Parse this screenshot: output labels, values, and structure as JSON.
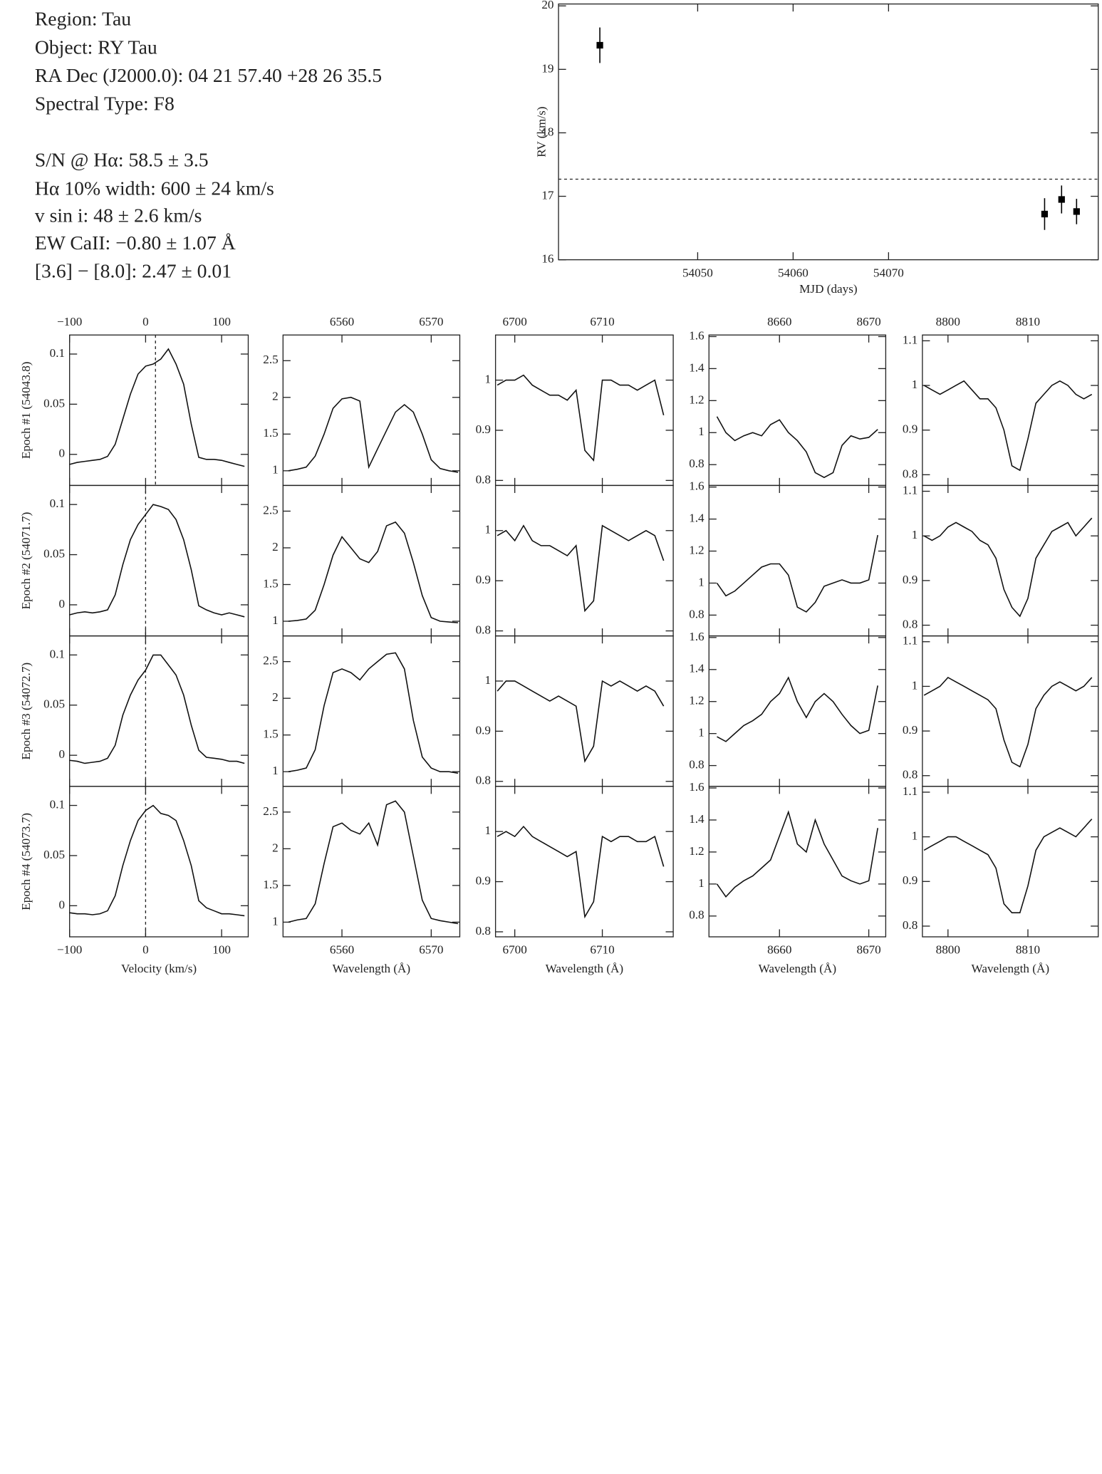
{
  "info": [
    "Region: Tau",
    "Object: RY Tau",
    "RA Dec (J2000.0): 04 21 57.40 +28 26 35.5",
    "Spectral Type: F8",
    "S/N @ Hα: 58.5 ± 3.5",
    "Hα 10% width: 600 ± 24 km/s",
    "v sin i: 48 ± 2.6 km/s",
    "EW CaII: −0.80 ± 1.07 Å",
    "[3.6] − [8.0]: 2.47 ± 0.01"
  ],
  "chart_data": [
    {
      "type": "scatter",
      "xlabel": "MJD (days)",
      "ylabel": "RV (km/s)",
      "x": [
        54039.75,
        54086.35,
        54088.13,
        54089.7
      ],
      "values": [
        19.38,
        16.72,
        16.95,
        16.76
      ],
      "errors": [
        0.28,
        0.25,
        0.22,
        0.2
      ],
      "hline": 17.27,
      "xlim": [
        54035.42,
        54091.97
      ],
      "ylim": [
        16,
        20.03
      ],
      "xticks": [
        54050,
        54060,
        54070
      ],
      "yticks": [
        16,
        17,
        18,
        19,
        20
      ],
      "color": "#000000"
    },
    {
      "type": "line",
      "ylabel": "Epoch #1 (54043.8)",
      "vline": 13,
      "xlim": [
        -100,
        135
      ],
      "ylim": [
        -0.031,
        0.119
      ],
      "xticks": [
        {
          "value": -100,
          "label": "−100"
        },
        0,
        100
      ],
      "yticks": [
        0,
        0.05,
        0.1
      ],
      "x": [
        -100,
        -90,
        -80,
        -70,
        -60,
        -50,
        -40,
        -30,
        -20,
        -10,
        0,
        10,
        20,
        30,
        40,
        50,
        60,
        70,
        80,
        90,
        100,
        110,
        120,
        130
      ],
      "values": [
        -0.01,
        -0.008,
        -0.007,
        -0.006,
        -0.005,
        -0.002,
        0.01,
        0.035,
        0.06,
        0.08,
        0.088,
        0.09,
        0.095,
        0.105,
        0.09,
        0.07,
        0.03,
        -0.003,
        -0.005,
        -0.005,
        -0.006,
        -0.008,
        -0.01,
        -0.012
      ]
    },
    {
      "type": "line",
      "xlim": [
        6553.4,
        6573.2
      ],
      "ylim": [
        0.8,
        2.85
      ],
      "xticks": [
        6560,
        6570
      ],
      "yticks": [
        1,
        1.5,
        2,
        2.5
      ],
      "x": [
        6554,
        6555,
        6556,
        6557,
        6558,
        6559,
        6560,
        6561,
        6562,
        6563,
        6564,
        6565,
        6566,
        6567,
        6568,
        6569,
        6570,
        6571,
        6572,
        6573
      ],
      "values": [
        1.0,
        1.02,
        1.05,
        1.2,
        1.5,
        1.85,
        1.98,
        2.0,
        1.95,
        1.05,
        1.3,
        1.55,
        1.8,
        1.9,
        1.8,
        1.5,
        1.15,
        1.03,
        1.0,
        0.98
      ]
    },
    {
      "type": "line",
      "xlim": [
        6697.8,
        6718.1
      ],
      "ylim": [
        0.79,
        1.09
      ],
      "xticks": [
        6700,
        6710
      ],
      "yticks": [
        0.8,
        0.9,
        1
      ],
      "x": [
        6698,
        6699,
        6700,
        6701,
        6702,
        6703,
        6704,
        6705,
        6706,
        6707,
        6708,
        6709,
        6710,
        6711,
        6712,
        6713,
        6714,
        6715,
        6716,
        6717
      ],
      "values": [
        0.99,
        1.0,
        1.0,
        1.01,
        0.99,
        0.98,
        0.97,
        0.97,
        0.96,
        0.98,
        0.86,
        0.84,
        1.0,
        1.0,
        0.99,
        0.99,
        0.98,
        0.99,
        1.0,
        0.93
      ]
    },
    {
      "type": "line",
      "xlim": [
        8652.1,
        8671.9
      ],
      "ylim": [
        0.67,
        1.61
      ],
      "xticks": [
        8660,
        8670
      ],
      "yticks": [
        0.8,
        1,
        1.2,
        1.4,
        1.6
      ],
      "x": [
        8653,
        8654,
        8655,
        8656,
        8657,
        8658,
        8659,
        8660,
        8661,
        8662,
        8663,
        8664,
        8665,
        8666,
        8667,
        8668,
        8669,
        8670,
        8671
      ],
      "values": [
        1.1,
        1.0,
        0.95,
        0.98,
        1.0,
        0.98,
        1.05,
        1.08,
        1.0,
        0.95,
        0.88,
        0.75,
        0.72,
        0.75,
        0.92,
        0.98,
        0.96,
        0.97,
        1.02
      ]
    },
    {
      "type": "line",
      "xlim": [
        8796.8,
        8818.8
      ],
      "ylim": [
        0.776,
        1.113
      ],
      "xticks": [
        8800,
        8810
      ],
      "yticks": [
        0.8,
        0.9,
        1,
        1.1
      ],
      "x": [
        8797,
        8798,
        8799,
        8800,
        8801,
        8802,
        8803,
        8804,
        8805,
        8806,
        8807,
        8808,
        8809,
        8810,
        8811,
        8812,
        8813,
        8814,
        8815,
        8816,
        8817,
        8818
      ],
      "values": [
        1.0,
        0.99,
        0.98,
        0.99,
        1.0,
        1.01,
        0.99,
        0.97,
        0.97,
        0.95,
        0.9,
        0.82,
        0.81,
        0.88,
        0.96,
        0.98,
        1.0,
        1.01,
        1.0,
        0.98,
        0.97,
        0.98
      ]
    },
    {
      "type": "line",
      "ylabel": "Epoch #2 (54071.7)",
      "vline": 0,
      "xlim": [
        -100,
        135
      ],
      "ylim": [
        -0.031,
        0.119
      ],
      "xticks": [
        -100,
        0,
        100
      ],
      "yticks": [
        0,
        0.05,
        0.1
      ],
      "x": [
        -100,
        -90,
        -80,
        -70,
        -60,
        -50,
        -40,
        -30,
        -20,
        -10,
        0,
        10,
        20,
        30,
        40,
        50,
        60,
        70,
        80,
        90,
        100,
        110,
        120,
        130
      ],
      "values": [
        -0.01,
        -0.008,
        -0.007,
        -0.008,
        -0.007,
        -0.005,
        0.01,
        0.04,
        0.065,
        0.08,
        0.09,
        0.1,
        0.098,
        0.095,
        0.085,
        0.065,
        0.035,
        -0.001,
        -0.005,
        -0.008,
        -0.01,
        -0.008,
        -0.01,
        -0.012
      ]
    },
    {
      "type": "line",
      "xlim": [
        6553.4,
        6573.2
      ],
      "ylim": [
        0.8,
        2.85
      ],
      "xticks": [
        6560,
        6570
      ],
      "yticks": [
        1,
        1.5,
        2,
        2.5
      ],
      "x": [
        6554,
        6555,
        6556,
        6557,
        6558,
        6559,
        6560,
        6561,
        6562,
        6563,
        6564,
        6565,
        6566,
        6567,
        6568,
        6569,
        6570,
        6571,
        6572,
        6573
      ],
      "values": [
        1.0,
        1.01,
        1.03,
        1.15,
        1.5,
        1.9,
        2.15,
        2.0,
        1.85,
        1.8,
        1.95,
        2.3,
        2.35,
        2.2,
        1.8,
        1.35,
        1.05,
        1.0,
        0.99,
        0.98
      ]
    },
    {
      "type": "line",
      "xlim": [
        6697.8,
        6718.1
      ],
      "ylim": [
        0.79,
        1.09
      ],
      "xticks": [
        6700,
        6710
      ],
      "yticks": [
        0.8,
        0.9,
        1
      ],
      "x": [
        6698,
        6699,
        6700,
        6701,
        6702,
        6703,
        6704,
        6705,
        6706,
        6707,
        6708,
        6709,
        6710,
        6711,
        6712,
        6713,
        6714,
        6715,
        6716,
        6717
      ],
      "values": [
        0.99,
        1.0,
        0.98,
        1.01,
        0.98,
        0.97,
        0.97,
        0.96,
        0.95,
        0.97,
        0.84,
        0.86,
        1.01,
        1.0,
        0.99,
        0.98,
        0.99,
        1.0,
        0.99,
        0.94
      ]
    },
    {
      "type": "line",
      "xlim": [
        8652.1,
        8671.9
      ],
      "ylim": [
        0.67,
        1.61
      ],
      "xticks": [
        8660,
        8670
      ],
      "yticks": [
        0.8,
        1,
        1.2,
        1.4,
        1.6
      ],
      "x": [
        8653,
        8654,
        8655,
        8656,
        8657,
        8658,
        8659,
        8660,
        8661,
        8662,
        8663,
        8664,
        8665,
        8666,
        8667,
        8668,
        8669,
        8670,
        8671
      ],
      "values": [
        1.0,
        0.92,
        0.95,
        1.0,
        1.05,
        1.1,
        1.12,
        1.12,
        1.05,
        0.85,
        0.82,
        0.88,
        0.98,
        1.0,
        1.02,
        1.0,
        1.0,
        1.02,
        1.3
      ]
    },
    {
      "type": "line",
      "xlim": [
        8796.8,
        8818.8
      ],
      "ylim": [
        0.776,
        1.113
      ],
      "xticks": [
        8800,
        8810
      ],
      "yticks": [
        0.8,
        0.9,
        1,
        1.1
      ],
      "x": [
        8797,
        8798,
        8799,
        8800,
        8801,
        8802,
        8803,
        8804,
        8805,
        8806,
        8807,
        8808,
        8809,
        8810,
        8811,
        8812,
        8813,
        8814,
        8815,
        8816,
        8817,
        8818
      ],
      "values": [
        1.0,
        0.99,
        1.0,
        1.02,
        1.03,
        1.02,
        1.01,
        0.99,
        0.98,
        0.95,
        0.88,
        0.84,
        0.82,
        0.86,
        0.95,
        0.98,
        1.01,
        1.02,
        1.03,
        1.0,
        1.02,
        1.04
      ]
    },
    {
      "type": "line",
      "ylabel": "Epoch #3 (54072.7)",
      "vline": 0,
      "xlim": [
        -100,
        135
      ],
      "ylim": [
        -0.031,
        0.119
      ],
      "xticks": [
        -100,
        0,
        100
      ],
      "yticks": [
        0,
        0.05,
        0.1
      ],
      "x": [
        -100,
        -90,
        -80,
        -70,
        -60,
        -50,
        -40,
        -30,
        -20,
        -10,
        0,
        10,
        20,
        30,
        40,
        50,
        60,
        70,
        80,
        90,
        100,
        110,
        120,
        130
      ],
      "values": [
        -0.005,
        -0.006,
        -0.008,
        -0.007,
        -0.006,
        -0.003,
        0.01,
        0.04,
        0.06,
        0.075,
        0.085,
        0.1,
        0.1,
        0.09,
        0.08,
        0.06,
        0.03,
        0.005,
        -0.002,
        -0.003,
        -0.004,
        -0.006,
        -0.006,
        -0.008
      ]
    },
    {
      "type": "line",
      "xlim": [
        6553.4,
        6573.2
      ],
      "ylim": [
        0.8,
        2.85
      ],
      "xticks": [
        6560,
        6570
      ],
      "yticks": [
        1,
        1.5,
        2,
        2.5
      ],
      "x": [
        6554,
        6555,
        6556,
        6557,
        6558,
        6559,
        6560,
        6561,
        6562,
        6563,
        6564,
        6565,
        6566,
        6567,
        6568,
        6569,
        6570,
        6571,
        6572,
        6573
      ],
      "values": [
        1.0,
        1.02,
        1.05,
        1.3,
        1.9,
        2.35,
        2.4,
        2.35,
        2.25,
        2.4,
        2.5,
        2.6,
        2.62,
        2.4,
        1.7,
        1.2,
        1.05,
        1.0,
        1.0,
        0.98
      ]
    },
    {
      "type": "line",
      "xlim": [
        6697.8,
        6718.1
      ],
      "ylim": [
        0.79,
        1.09
      ],
      "xticks": [
        6700,
        6710
      ],
      "yticks": [
        0.8,
        0.9,
        1
      ],
      "x": [
        6698,
        6699,
        6700,
        6701,
        6702,
        6703,
        6704,
        6705,
        6706,
        6707,
        6708,
        6709,
        6710,
        6711,
        6712,
        6713,
        6714,
        6715,
        6716,
        6717
      ],
      "values": [
        0.98,
        1.0,
        1.0,
        0.99,
        0.98,
        0.97,
        0.96,
        0.97,
        0.96,
        0.95,
        0.84,
        0.87,
        1.0,
        0.99,
        1.0,
        0.99,
        0.98,
        0.99,
        0.98,
        0.95
      ]
    },
    {
      "type": "line",
      "xlim": [
        8652.1,
        8671.9
      ],
      "ylim": [
        0.67,
        1.61
      ],
      "xticks": [
        8660,
        8670
      ],
      "yticks": [
        0.8,
        1,
        1.2,
        1.4,
        1.6
      ],
      "x": [
        8653,
        8654,
        8655,
        8656,
        8657,
        8658,
        8659,
        8660,
        8661,
        8662,
        8663,
        8664,
        8665,
        8666,
        8667,
        8668,
        8669,
        8670,
        8671
      ],
      "values": [
        0.98,
        0.95,
        1.0,
        1.05,
        1.08,
        1.12,
        1.2,
        1.25,
        1.35,
        1.2,
        1.1,
        1.2,
        1.25,
        1.2,
        1.12,
        1.05,
        1.0,
        1.02,
        1.3
      ]
    },
    {
      "type": "line",
      "xlim": [
        8796.8,
        8818.8
      ],
      "ylim": [
        0.776,
        1.113
      ],
      "xticks": [
        8800,
        8810
      ],
      "yticks": [
        0.8,
        0.9,
        1,
        1.1
      ],
      "x": [
        8797,
        8798,
        8799,
        8800,
        8801,
        8802,
        8803,
        8804,
        8805,
        8806,
        8807,
        8808,
        8809,
        8810,
        8811,
        8812,
        8813,
        8814,
        8815,
        8816,
        8817,
        8818
      ],
      "values": [
        0.98,
        0.99,
        1.0,
        1.02,
        1.01,
        1.0,
        0.99,
        0.98,
        0.97,
        0.95,
        0.88,
        0.83,
        0.82,
        0.87,
        0.95,
        0.98,
        1.0,
        1.01,
        1.0,
        0.99,
        1.0,
        1.02
      ]
    },
    {
      "type": "line",
      "ylabel": "Epoch #4 (54073.7)",
      "xlabel": "Velocity (km/s)",
      "vline": 0,
      "xlim": [
        -100,
        135
      ],
      "ylim": [
        -0.031,
        0.119
      ],
      "xticks": [
        {
          "value": -100,
          "label": "−100"
        },
        0,
        100
      ],
      "yticks": [
        0,
        0.05,
        0.1
      ],
      "x": [
        -100,
        -90,
        -80,
        -70,
        -60,
        -50,
        -40,
        -30,
        -20,
        -10,
        0,
        10,
        20,
        30,
        40,
        50,
        60,
        70,
        80,
        90,
        100,
        110,
        120,
        130
      ],
      "values": [
        -0.007,
        -0.008,
        -0.008,
        -0.009,
        -0.008,
        -0.005,
        0.01,
        0.04,
        0.065,
        0.085,
        0.095,
        0.1,
        0.092,
        0.09,
        0.085,
        0.065,
        0.04,
        0.005,
        -0.002,
        -0.005,
        -0.008,
        -0.008,
        -0.009,
        -0.01
      ]
    },
    {
      "type": "line",
      "xlabel": "Wavelength (Å)",
      "xlim": [
        6553.4,
        6573.2
      ],
      "ylim": [
        0.8,
        2.85
      ],
      "xticks": [
        6560,
        6570
      ],
      "yticks": [
        1,
        1.5,
        2,
        2.5
      ],
      "x": [
        6554,
        6555,
        6556,
        6557,
        6558,
        6559,
        6560,
        6561,
        6562,
        6563,
        6564,
        6565,
        6566,
        6567,
        6568,
        6569,
        6570,
        6571,
        6572,
        6573
      ],
      "values": [
        1.0,
        1.03,
        1.05,
        1.25,
        1.8,
        2.3,
        2.35,
        2.25,
        2.2,
        2.35,
        2.05,
        2.6,
        2.65,
        2.5,
        1.9,
        1.3,
        1.05,
        1.02,
        1.0,
        0.98
      ]
    },
    {
      "type": "line",
      "xlabel": "Wavelength (Å)",
      "xlim": [
        6697.8,
        6718.1
      ],
      "ylim": [
        0.79,
        1.09
      ],
      "xticks": [
        6700,
        6710
      ],
      "yticks": [
        0.8,
        0.9,
        1
      ],
      "x": [
        6698,
        6699,
        6700,
        6701,
        6702,
        6703,
        6704,
        6705,
        6706,
        6707,
        6708,
        6709,
        6710,
        6711,
        6712,
        6713,
        6714,
        6715,
        6716,
        6717
      ],
      "values": [
        0.99,
        1.0,
        0.99,
        1.01,
        0.99,
        0.98,
        0.97,
        0.96,
        0.95,
        0.96,
        0.83,
        0.86,
        0.99,
        0.98,
        0.99,
        0.99,
        0.98,
        0.98,
        0.99,
        0.93
      ]
    },
    {
      "type": "line",
      "xlabel": "Wavelength (Å)",
      "xlim": [
        8652.1,
        8671.9
      ],
      "ylim": [
        0.67,
        1.61
      ],
      "xticks": [
        8660,
        8670
      ],
      "yticks": [
        0.8,
        1,
        1.2,
        1.4,
        1.6
      ],
      "x": [
        8653,
        8654,
        8655,
        8656,
        8657,
        8658,
        8659,
        8660,
        8661,
        8662,
        8663,
        8664,
        8665,
        8666,
        8667,
        8668,
        8669,
        8670,
        8671
      ],
      "values": [
        1.0,
        0.92,
        0.98,
        1.02,
        1.05,
        1.1,
        1.15,
        1.3,
        1.45,
        1.25,
        1.2,
        1.4,
        1.25,
        1.15,
        1.05,
        1.02,
        1.0,
        1.02,
        1.35
      ]
    },
    {
      "type": "line",
      "xlabel": "Wavelength (Å)",
      "xlim": [
        8796.8,
        8818.8
      ],
      "ylim": [
        0.776,
        1.113
      ],
      "xticks": [
        8800,
        8810
      ],
      "yticks": [
        0.8,
        0.9,
        1,
        1.1
      ],
      "x": [
        8797,
        8798,
        8799,
        8800,
        8801,
        8802,
        8803,
        8804,
        8805,
        8806,
        8807,
        8808,
        8809,
        8810,
        8811,
        8812,
        8813,
        8814,
        8815,
        8816,
        8817,
        8818
      ],
      "values": [
        0.97,
        0.98,
        0.99,
        1.0,
        1.0,
        0.99,
        0.98,
        0.97,
        0.96,
        0.93,
        0.85,
        0.83,
        0.83,
        0.89,
        0.97,
        1.0,
        1.01,
        1.02,
        1.01,
        1.0,
        1.02,
        1.04
      ]
    }
  ]
}
